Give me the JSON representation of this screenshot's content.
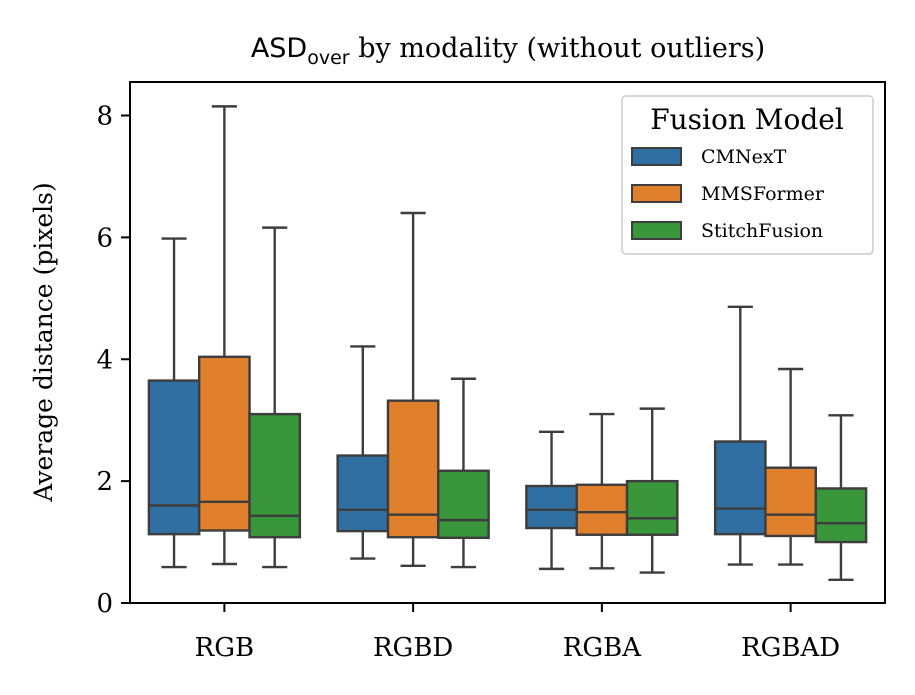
{
  "chart_data": {
    "type": "box",
    "title": {
      "main": "ASD",
      "subscript": "over",
      "rest": " by modality (without outliers)"
    },
    "xlabel": "",
    "ylabel": "Average distance (pixels)",
    "ylim": [
      0,
      8.55
    ],
    "yticks": [
      "0",
      "2",
      "4",
      "6",
      "8"
    ],
    "categories": [
      "RGB",
      "RGBD",
      "RGBA",
      "RGBAD"
    ],
    "legend": {
      "title": "Fusion Model",
      "position": "top-right"
    },
    "series": [
      {
        "name": "CMNexT",
        "color": "#2f6fa2",
        "boxes": [
          {
            "min": 0.59,
            "q1": 1.13,
            "median": 1.6,
            "q3": 3.65,
            "max": 5.98
          },
          {
            "min": 0.73,
            "q1": 1.18,
            "median": 1.53,
            "q3": 2.42,
            "max": 4.21
          },
          {
            "min": 0.56,
            "q1": 1.23,
            "median": 1.53,
            "q3": 1.92,
            "max": 2.81
          },
          {
            "min": 0.63,
            "q1": 1.13,
            "median": 1.55,
            "q3": 2.65,
            "max": 4.86
          }
        ]
      },
      {
        "name": "MMSFormer",
        "color": "#e0802d",
        "boxes": [
          {
            "min": 0.64,
            "q1": 1.19,
            "median": 1.66,
            "q3": 4.04,
            "max": 8.15
          },
          {
            "min": 0.61,
            "q1": 1.08,
            "median": 1.45,
            "q3": 3.32,
            "max": 6.4
          },
          {
            "min": 0.57,
            "q1": 1.12,
            "median": 1.49,
            "q3": 1.94,
            "max": 3.1
          },
          {
            "min": 0.63,
            "q1": 1.1,
            "median": 1.45,
            "q3": 2.22,
            "max": 3.84
          }
        ]
      },
      {
        "name": "StitchFusion",
        "color": "#3a963a",
        "boxes": [
          {
            "min": 0.59,
            "q1": 1.08,
            "median": 1.43,
            "q3": 3.1,
            "max": 6.16
          },
          {
            "min": 0.59,
            "q1": 1.07,
            "median": 1.36,
            "q3": 2.17,
            "max": 3.68
          },
          {
            "min": 0.5,
            "q1": 1.12,
            "median": 1.39,
            "q3": 2.0,
            "max": 3.19
          },
          {
            "min": 0.38,
            "q1": 1.0,
            "median": 1.31,
            "q3": 1.88,
            "max": 3.08
          }
        ]
      }
    ]
  }
}
